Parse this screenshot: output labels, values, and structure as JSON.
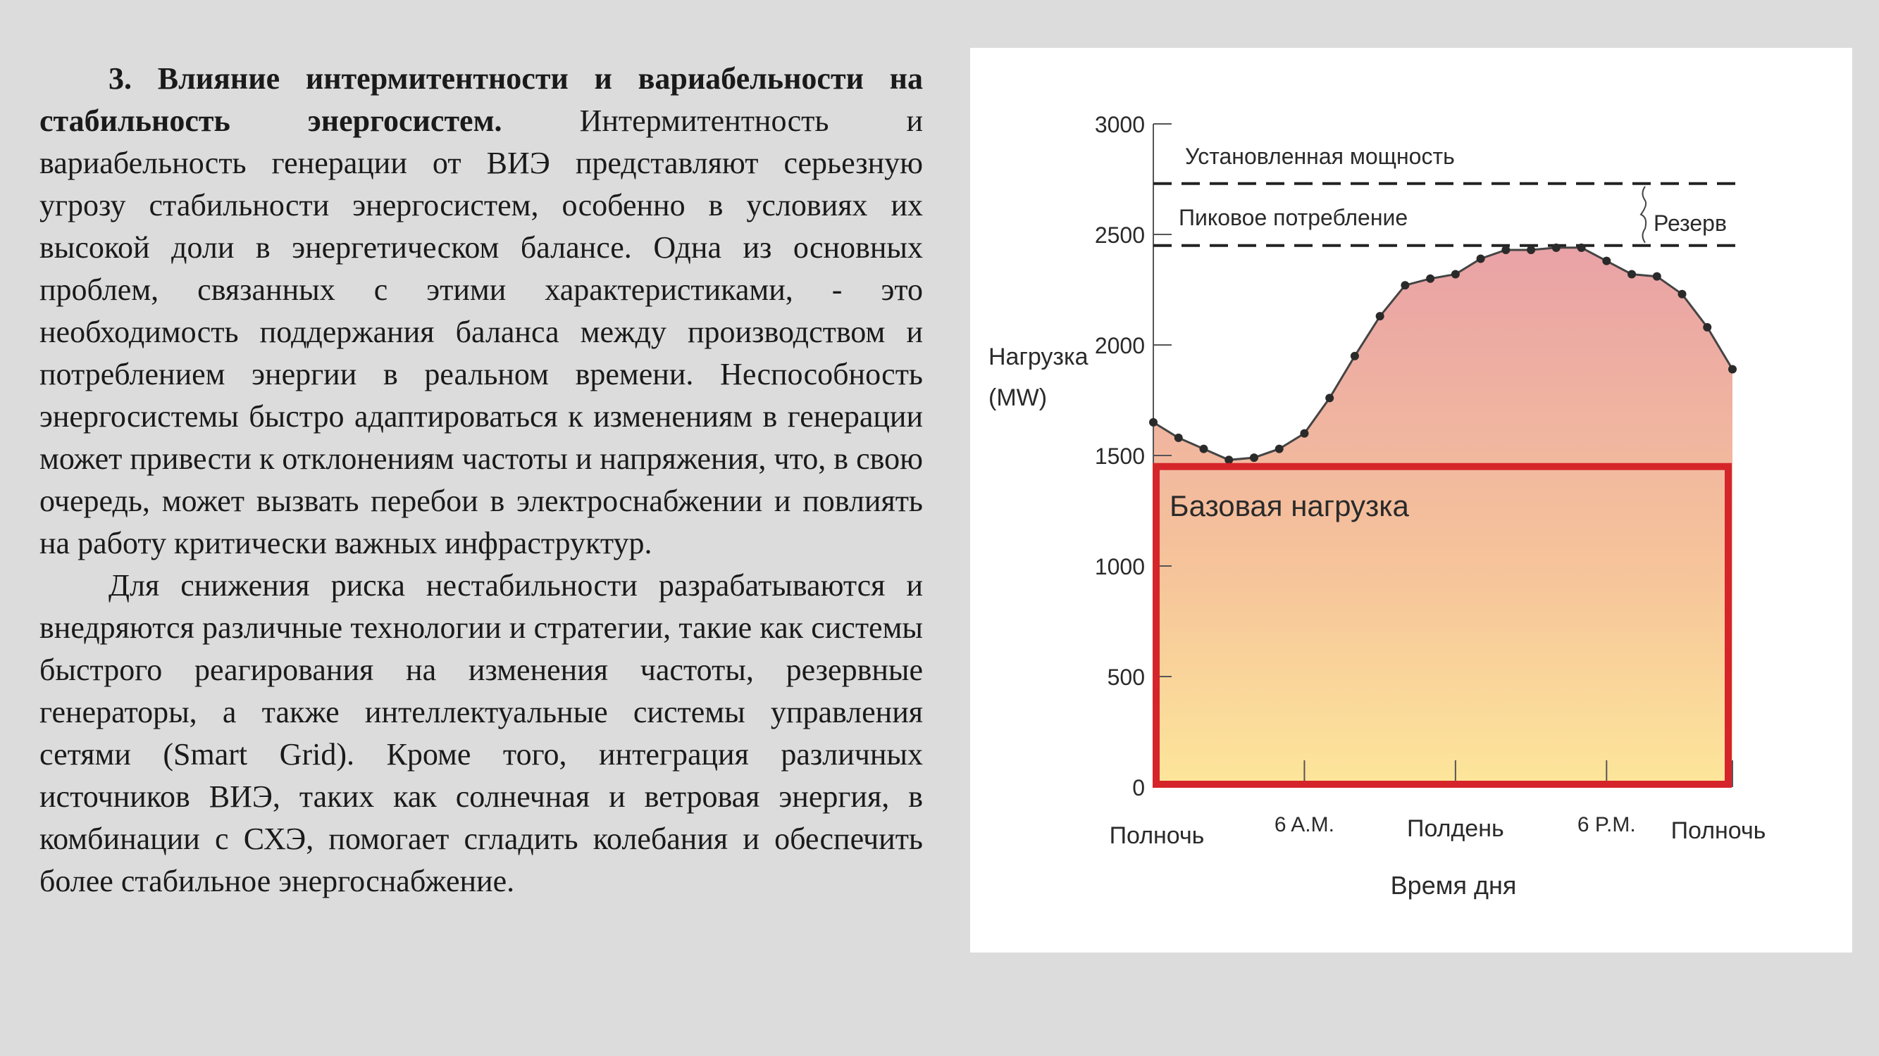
{
  "text": {
    "p1_bold": "3. Влияние интермитентности и вариабельности на стабильность энергосистем.",
    "p1_rest": " Интермитентность и вариабельность генерации от ВИЭ представляют серьезную угрозу стабильности энергосистем, особенно в условиях их высокой доли в энергетическом балансе. Одна из основных проблем, связанных с этими характеристиками, - это необходимость поддержания баланса между производством и потреблением энергии в реальном времени. Неспособность энергосистемы быстро адаптироваться к изменениям в генерации может привести к отклонениям частоты и напряжения, что, в свою очередь, может вызвать перебои в электроснабжении и повлиять на работу критически важных инфраструктур.",
    "p2": "Для снижения риска нестабильности разрабатываются и внедряются различные технологии и стратегии, такие как системы быстрого реагирования на изменения частоты, резервные генераторы, а также интеллектуальные системы управления сетями (Smart Grid). Кроме того, интеграция различных источников ВИЭ, таких как солнечная и ветровая энергия, в комбинации с СХЭ, помогает сгладить колебания и обеспечить более стабильное энергоснабжение."
  },
  "chart_data": {
    "type": "area",
    "title": "",
    "ylabel_line1": "Нагрузка",
    "ylabel_line2": "(MW)",
    "xlabel": "Время дня",
    "ylim": [
      0,
      3000
    ],
    "y_ticks": [
      0,
      500,
      1000,
      1500,
      2000,
      2500,
      3000
    ],
    "x_ticks": [
      {
        "label": "Полночь",
        "hour": 0
      },
      {
        "label": "6 A.M.",
        "hour": 6
      },
      {
        "label": "Полдень",
        "hour": 12
      },
      {
        "label": "6 P.M.",
        "hour": 18
      },
      {
        "label": "Полночь",
        "hour": 23
      }
    ],
    "hours": [
      0,
      1,
      2,
      3,
      4,
      5,
      6,
      7,
      8,
      9,
      10,
      11,
      12,
      13,
      14,
      15,
      16,
      17,
      18,
      19,
      20,
      21,
      22,
      23
    ],
    "load": [
      1650,
      1580,
      1530,
      1480,
      1490,
      1530,
      1600,
      1760,
      1950,
      2130,
      2270,
      2300,
      2320,
      2390,
      2430,
      2430,
      2440,
      2440,
      2380,
      2320,
      2310,
      2230,
      2080,
      1890
    ],
    "installed_capacity": {
      "label": "Установленная мощность",
      "value": 2730
    },
    "peak_demand": {
      "label": "Пиковое потребление",
      "value": 2450
    },
    "reserve_label": "Резерв",
    "base_load": {
      "label": "Базовая нагрузка",
      "value": 1450
    },
    "colors": {
      "area_top": "#e9a2a6",
      "area_mid": "#f6c49a",
      "area_bottom": "#fde69a",
      "base_border": "#d6242b",
      "line": "#444444"
    }
  }
}
